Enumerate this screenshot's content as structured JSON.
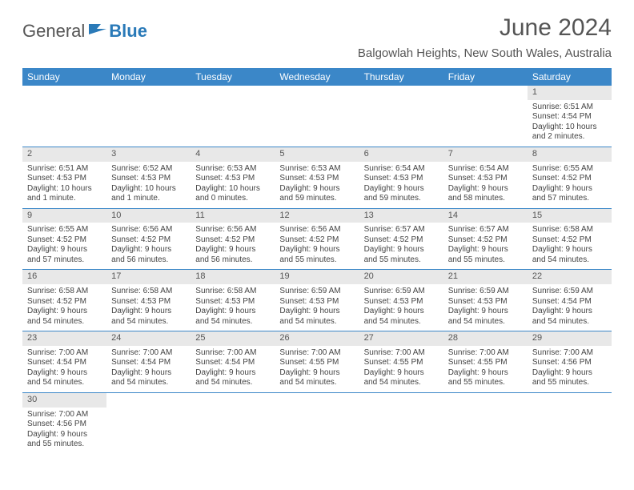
{
  "logo": {
    "text1": "General",
    "text2": "Blue",
    "icon_color": "#2a7ab8"
  },
  "title": "June 2024",
  "location": "Balgowlah Heights, New South Wales, Australia",
  "colors": {
    "header_bg": "#3b87c8",
    "daynum_bg": "#e8e8e8",
    "rule": "#3b87c8"
  },
  "daynames": [
    "Sunday",
    "Monday",
    "Tuesday",
    "Wednesday",
    "Thursday",
    "Friday",
    "Saturday"
  ],
  "weeks": [
    [
      null,
      null,
      null,
      null,
      null,
      null,
      {
        "n": "1",
        "lines": [
          "Sunrise: 6:51 AM",
          "Sunset: 4:54 PM",
          "Daylight: 10 hours",
          "and 2 minutes."
        ]
      }
    ],
    [
      {
        "n": "2",
        "lines": [
          "Sunrise: 6:51 AM",
          "Sunset: 4:53 PM",
          "Daylight: 10 hours",
          "and 1 minute."
        ]
      },
      {
        "n": "3",
        "lines": [
          "Sunrise: 6:52 AM",
          "Sunset: 4:53 PM",
          "Daylight: 10 hours",
          "and 1 minute."
        ]
      },
      {
        "n": "4",
        "lines": [
          "Sunrise: 6:53 AM",
          "Sunset: 4:53 PM",
          "Daylight: 10 hours",
          "and 0 minutes."
        ]
      },
      {
        "n": "5",
        "lines": [
          "Sunrise: 6:53 AM",
          "Sunset: 4:53 PM",
          "Daylight: 9 hours",
          "and 59 minutes."
        ]
      },
      {
        "n": "6",
        "lines": [
          "Sunrise: 6:54 AM",
          "Sunset: 4:53 PM",
          "Daylight: 9 hours",
          "and 59 minutes."
        ]
      },
      {
        "n": "7",
        "lines": [
          "Sunrise: 6:54 AM",
          "Sunset: 4:53 PM",
          "Daylight: 9 hours",
          "and 58 minutes."
        ]
      },
      {
        "n": "8",
        "lines": [
          "Sunrise: 6:55 AM",
          "Sunset: 4:52 PM",
          "Daylight: 9 hours",
          "and 57 minutes."
        ]
      }
    ],
    [
      {
        "n": "9",
        "lines": [
          "Sunrise: 6:55 AM",
          "Sunset: 4:52 PM",
          "Daylight: 9 hours",
          "and 57 minutes."
        ]
      },
      {
        "n": "10",
        "lines": [
          "Sunrise: 6:56 AM",
          "Sunset: 4:52 PM",
          "Daylight: 9 hours",
          "and 56 minutes."
        ]
      },
      {
        "n": "11",
        "lines": [
          "Sunrise: 6:56 AM",
          "Sunset: 4:52 PM",
          "Daylight: 9 hours",
          "and 56 minutes."
        ]
      },
      {
        "n": "12",
        "lines": [
          "Sunrise: 6:56 AM",
          "Sunset: 4:52 PM",
          "Daylight: 9 hours",
          "and 55 minutes."
        ]
      },
      {
        "n": "13",
        "lines": [
          "Sunrise: 6:57 AM",
          "Sunset: 4:52 PM",
          "Daylight: 9 hours",
          "and 55 minutes."
        ]
      },
      {
        "n": "14",
        "lines": [
          "Sunrise: 6:57 AM",
          "Sunset: 4:52 PM",
          "Daylight: 9 hours",
          "and 55 minutes."
        ]
      },
      {
        "n": "15",
        "lines": [
          "Sunrise: 6:58 AM",
          "Sunset: 4:52 PM",
          "Daylight: 9 hours",
          "and 54 minutes."
        ]
      }
    ],
    [
      {
        "n": "16",
        "lines": [
          "Sunrise: 6:58 AM",
          "Sunset: 4:52 PM",
          "Daylight: 9 hours",
          "and 54 minutes."
        ]
      },
      {
        "n": "17",
        "lines": [
          "Sunrise: 6:58 AM",
          "Sunset: 4:53 PM",
          "Daylight: 9 hours",
          "and 54 minutes."
        ]
      },
      {
        "n": "18",
        "lines": [
          "Sunrise: 6:58 AM",
          "Sunset: 4:53 PM",
          "Daylight: 9 hours",
          "and 54 minutes."
        ]
      },
      {
        "n": "19",
        "lines": [
          "Sunrise: 6:59 AM",
          "Sunset: 4:53 PM",
          "Daylight: 9 hours",
          "and 54 minutes."
        ]
      },
      {
        "n": "20",
        "lines": [
          "Sunrise: 6:59 AM",
          "Sunset: 4:53 PM",
          "Daylight: 9 hours",
          "and 54 minutes."
        ]
      },
      {
        "n": "21",
        "lines": [
          "Sunrise: 6:59 AM",
          "Sunset: 4:53 PM",
          "Daylight: 9 hours",
          "and 54 minutes."
        ]
      },
      {
        "n": "22",
        "lines": [
          "Sunrise: 6:59 AM",
          "Sunset: 4:54 PM",
          "Daylight: 9 hours",
          "and 54 minutes."
        ]
      }
    ],
    [
      {
        "n": "23",
        "lines": [
          "Sunrise: 7:00 AM",
          "Sunset: 4:54 PM",
          "Daylight: 9 hours",
          "and 54 minutes."
        ]
      },
      {
        "n": "24",
        "lines": [
          "Sunrise: 7:00 AM",
          "Sunset: 4:54 PM",
          "Daylight: 9 hours",
          "and 54 minutes."
        ]
      },
      {
        "n": "25",
        "lines": [
          "Sunrise: 7:00 AM",
          "Sunset: 4:54 PM",
          "Daylight: 9 hours",
          "and 54 minutes."
        ]
      },
      {
        "n": "26",
        "lines": [
          "Sunrise: 7:00 AM",
          "Sunset: 4:55 PM",
          "Daylight: 9 hours",
          "and 54 minutes."
        ]
      },
      {
        "n": "27",
        "lines": [
          "Sunrise: 7:00 AM",
          "Sunset: 4:55 PM",
          "Daylight: 9 hours",
          "and 54 minutes."
        ]
      },
      {
        "n": "28",
        "lines": [
          "Sunrise: 7:00 AM",
          "Sunset: 4:55 PM",
          "Daylight: 9 hours",
          "and 55 minutes."
        ]
      },
      {
        "n": "29",
        "lines": [
          "Sunrise: 7:00 AM",
          "Sunset: 4:56 PM",
          "Daylight: 9 hours",
          "and 55 minutes."
        ]
      }
    ],
    [
      {
        "n": "30",
        "lines": [
          "Sunrise: 7:00 AM",
          "Sunset: 4:56 PM",
          "Daylight: 9 hours",
          "and 55 minutes."
        ]
      },
      null,
      null,
      null,
      null,
      null,
      null
    ]
  ]
}
